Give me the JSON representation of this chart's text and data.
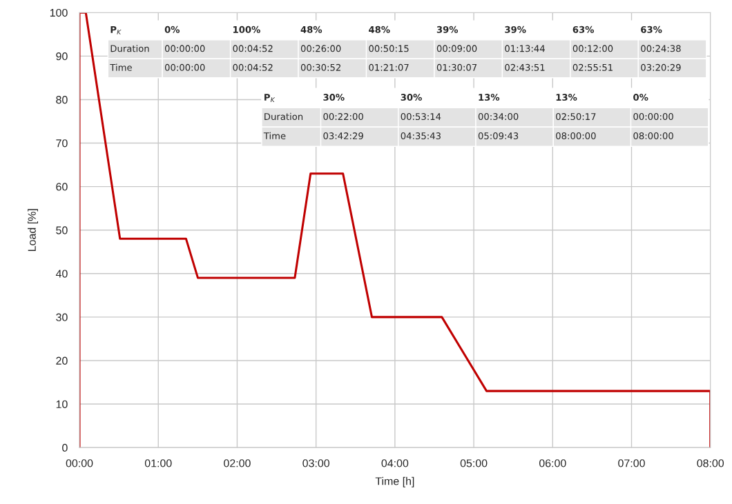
{
  "chart_data": {
    "type": "line",
    "xlabel": "Time [h]",
    "ylabel": "Load [%]",
    "x": [
      0,
      0,
      0.0811,
      0.5144,
      1.3519,
      1.5019,
      2.7308,
      2.9308,
      3.3414,
      3.7081,
      4.5953,
      5.1619,
      8,
      8
    ],
    "series": [
      {
        "color": "#c00000",
        "values": [
          0,
          100,
          100,
          48,
          48,
          39,
          39,
          63,
          63,
          30,
          30,
          13,
          13,
          0
        ]
      }
    ],
    "xlim": [
      0,
      8
    ],
    "ylim": [
      0,
      100
    ],
    "xticks": [
      {
        "value": 0,
        "label": "00:00"
      },
      {
        "value": 1,
        "label": "01:00"
      },
      {
        "value": 2,
        "label": "02:00"
      },
      {
        "value": 3,
        "label": "03:00"
      },
      {
        "value": 4,
        "label": "04:00"
      },
      {
        "value": 5,
        "label": "05:00"
      },
      {
        "value": 6,
        "label": "06:00"
      },
      {
        "value": 7,
        "label": "07:00"
      },
      {
        "value": 8,
        "label": "08:00"
      }
    ],
    "yticks": [
      0,
      10,
      20,
      30,
      40,
      50,
      60,
      70,
      80,
      90,
      100
    ],
    "grid": true,
    "marker": "none",
    "line_style": "solid",
    "legend": false,
    "annotations": [
      "P$_{K}$",
      "0%",
      "100%",
      "48%",
      "48%",
      "39%",
      "39%",
      "63%",
      "63%",
      "Duration",
      "00:00:00",
      "00:04:52",
      "00:26:00",
      "00:50:15",
      "00:09:00",
      "01:13:44",
      "00:12:00",
      "00:24:38",
      "Time",
      "00:00:00",
      "00:04:52",
      "00:30:52",
      "01:21:07",
      "01:30:07",
      "02:43:51",
      "02:55:51",
      "03:20:29",
      "P$_{K}$",
      "30%",
      "30%",
      "13%",
      "13%",
      "0%",
      "Duration",
      "00:22:00",
      "00:53:14",
      "00:34:00",
      "02:50:17",
      "00:00:00",
      "Time",
      "03:42:29",
      "04:35:43",
      "05:09:43",
      "08:00:00",
      "08:00:00"
    ]
  }
}
